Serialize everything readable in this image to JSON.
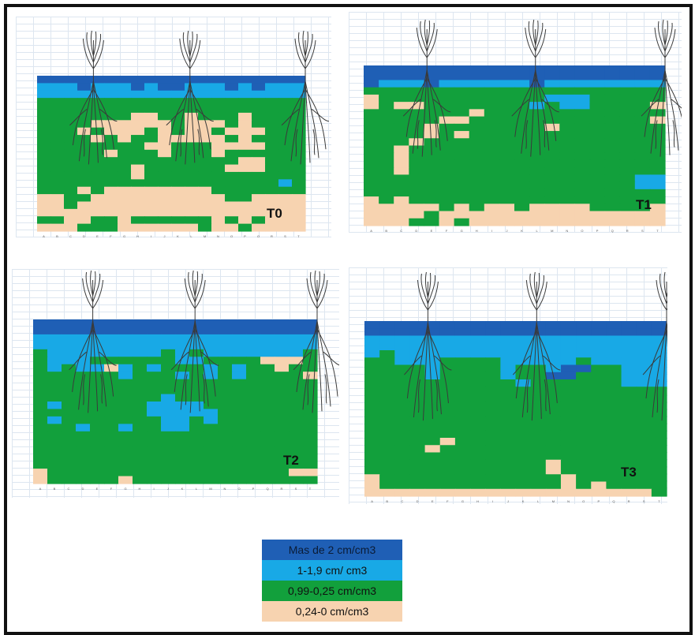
{
  "colors": {
    "c0": "#1f5fb5",
    "c1": "#18a9e6",
    "c2": "#12a03c",
    "c3": "#f7d3b0",
    "grid": "#dde6f0",
    "line": "#3a3a3a"
  },
  "legend": [
    {
      "label": "Mas de 2 cm/cm3",
      "color": "#1f5fb5"
    },
    {
      "label": "1-1,9 cm/ cm3",
      "color": "#18a9e6"
    },
    {
      "label": "0,99-0,25 cm/cm3",
      "color": "#12a03c"
    },
    {
      "label": "0,24-0 cm/cm3",
      "color": "#f7d3b0"
    }
  ],
  "chart_data": [
    {
      "type": "heatmap",
      "title": "T0",
      "columns": [
        "A",
        "B",
        "C",
        "D",
        "E",
        "F",
        "G",
        "H",
        "I",
        "J",
        "K",
        "L",
        "M",
        "N",
        "O",
        "P",
        "Q",
        "R",
        "S",
        "T"
      ],
      "cells": [
        "00000000000000000000",
        "11101110100111010111",
        "11111111111111111111",
        "22222222222222222222",
        "22222222222222222222",
        "22222223322322232222",
        "22223333332333232222",
        "22232333232332333222",
        "22223232233333232222",
        "22222222332223333222",
        "22222322232223222222",
        "22222222222222233222",
        "22222223222222333222",
        "22222223222222222222",
        "22222222222222222212",
        "22232333333332222222",
        "33223333333333223333",
        "33233333333333333333",
        "33333333333333333333",
        "22332232222223232333",
        "33322233333323323333"
      ]
    },
    {
      "type": "heatmap",
      "title": "T1",
      "columns": [
        "A",
        "B",
        "C",
        "D",
        "E",
        "F",
        "G",
        "H",
        "I",
        "J",
        "K",
        "L",
        "M",
        "N",
        "O",
        "P",
        "Q",
        "R",
        "S",
        "T"
      ],
      "cells": [
        "00000000000000000000",
        "00000000000000000000",
        "01110111111011111111",
        "22222222222222222222",
        "32222222222211122222",
        "32332222222121122223",
        "22222223222222222222",
        "22222332222222222223",
        "22223222222232222222",
        "22223232222222222222",
        "22232222222222222222",
        "22322222222222222222",
        "22322222222222222222",
        "22322222222222222222",
        "22322222222222222222",
        "22222222222222222211",
        "22222222222222222211",
        "22222222222222222222",
        "32322222222222222222",
        "33333232332333322223",
        "33332333333333333333",
        "33322323333333333333"
      ]
    },
    {
      "type": "heatmap",
      "title": "T2",
      "columns": [
        "A",
        "B",
        "C",
        "D",
        "E",
        "F",
        "G",
        "H",
        "I",
        "J",
        "K",
        "L",
        "M",
        "N",
        "O",
        "P",
        "Q",
        "R",
        "S",
        "T"
      ],
      "cells": [
        "00000000000000000000",
        "00000000000000000000",
        "11111111111111111111",
        "11111111111111111111",
        "21111111121211111112",
        "21112222221122223332",
        "21211312122212122322",
        "22222212221212122223",
        "22222222222222222222",
        "22222222222222222222",
        "22222222212222222222",
        "21222222111122222222",
        "22222222111112222222",
        "21222222211212222222",
        "22212212211222222222",
        "22222222222222222222",
        "22222222222222222222",
        "22222222222222222222",
        "22222222222222222222",
        "22222222222222222222",
        "32222222222222222233",
        "32222232222222222222"
      ]
    },
    {
      "type": "heatmap",
      "title": "T3",
      "columns": [
        "A",
        "B",
        "C",
        "D",
        "E",
        "F",
        "G",
        "H",
        "I",
        "J",
        "K",
        "L",
        "M",
        "N",
        "O",
        "P",
        "Q",
        "R",
        "S",
        "T"
      ],
      "cells": [
        "00000000000000000000",
        "00000000000000000000",
        "11111111111111111111",
        "11111111111111111111",
        "12111111111111111111",
        "22111222211111211111",
        "22221222212210022111",
        "22221222212200222111",
        "22222222221222222111",
        "22222222222222222222",
        "22222222222222222222",
        "22222222222222222222",
        "22222222222222222222",
        "22222222222222222222",
        "22222222222222222222",
        "22222222222222222222",
        "22222322222222222222",
        "22223222222222222222",
        "22222222222222222222",
        "22222222222232222222",
        "22222222222232222222",
        "32222222222223222222",
        "32222222222223232222",
        "33333333333333333332"
      ]
    }
  ]
}
